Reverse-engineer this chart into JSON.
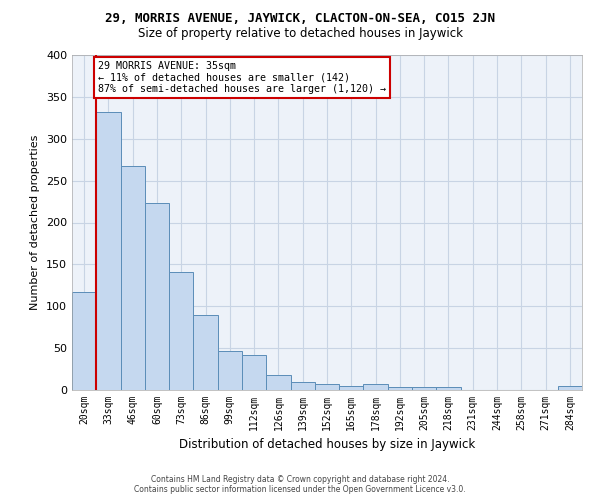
{
  "title": "29, MORRIS AVENUE, JAYWICK, CLACTON-ON-SEA, CO15 2JN",
  "subtitle": "Size of property relative to detached houses in Jaywick",
  "xlabel": "Distribution of detached houses by size in Jaywick",
  "ylabel": "Number of detached properties",
  "categories": [
    "20sqm",
    "33sqm",
    "46sqm",
    "60sqm",
    "73sqm",
    "86sqm",
    "99sqm",
    "112sqm",
    "126sqm",
    "139sqm",
    "152sqm",
    "165sqm",
    "178sqm",
    "192sqm",
    "205sqm",
    "218sqm",
    "231sqm",
    "244sqm",
    "258sqm",
    "271sqm",
    "284sqm"
  ],
  "values": [
    117,
    332,
    267,
    223,
    141,
    90,
    46,
    42,
    18,
    9,
    7,
    5,
    7,
    4,
    3,
    4,
    0,
    0,
    0,
    0,
    5
  ],
  "bar_color": "#c5d8ef",
  "bar_edge_color": "#5b8db8",
  "property_line_x": 0.5,
  "property_label": "29 MORRIS AVENUE: 35sqm",
  "annotation_line1": "← 11% of detached houses are smaller (142)",
  "annotation_line2": "87% of semi-detached houses are larger (1,120) →",
  "annotation_box_color": "#ffffff",
  "annotation_box_edge": "#cc0000",
  "property_line_color": "#cc0000",
  "grid_color": "#c8d4e4",
  "bg_color": "#edf2f9",
  "ylim": [
    0,
    400
  ],
  "yticks": [
    0,
    50,
    100,
    150,
    200,
    250,
    300,
    350,
    400
  ],
  "footer1": "Contains HM Land Registry data © Crown copyright and database right 2024.",
  "footer2": "Contains public sector information licensed under the Open Government Licence v3.0."
}
